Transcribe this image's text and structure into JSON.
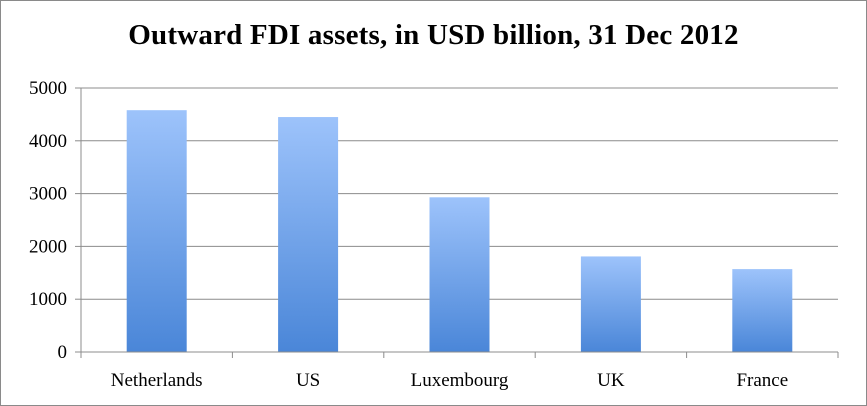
{
  "chart_data": {
    "type": "bar",
    "title": "Outward FDI assets, in USD billion, 31 Dec 2012",
    "categories": [
      "Netherlands",
      "US",
      "Luxembourg",
      "UK",
      "France"
    ],
    "values": [
      4580,
      4450,
      2930,
      1810,
      1570
    ],
    "ylim": [
      0,
      5000
    ],
    "yticks": [
      0,
      1000,
      2000,
      3000,
      4000,
      5000
    ],
    "grid": true,
    "legend": "none",
    "xlabel": "",
    "ylabel": "",
    "colors": {
      "bar_top": "#9dc3fb",
      "bar_bottom": "#4a86d8",
      "grid": "#8c8c8c",
      "axis": "#8c8c8c"
    }
  }
}
